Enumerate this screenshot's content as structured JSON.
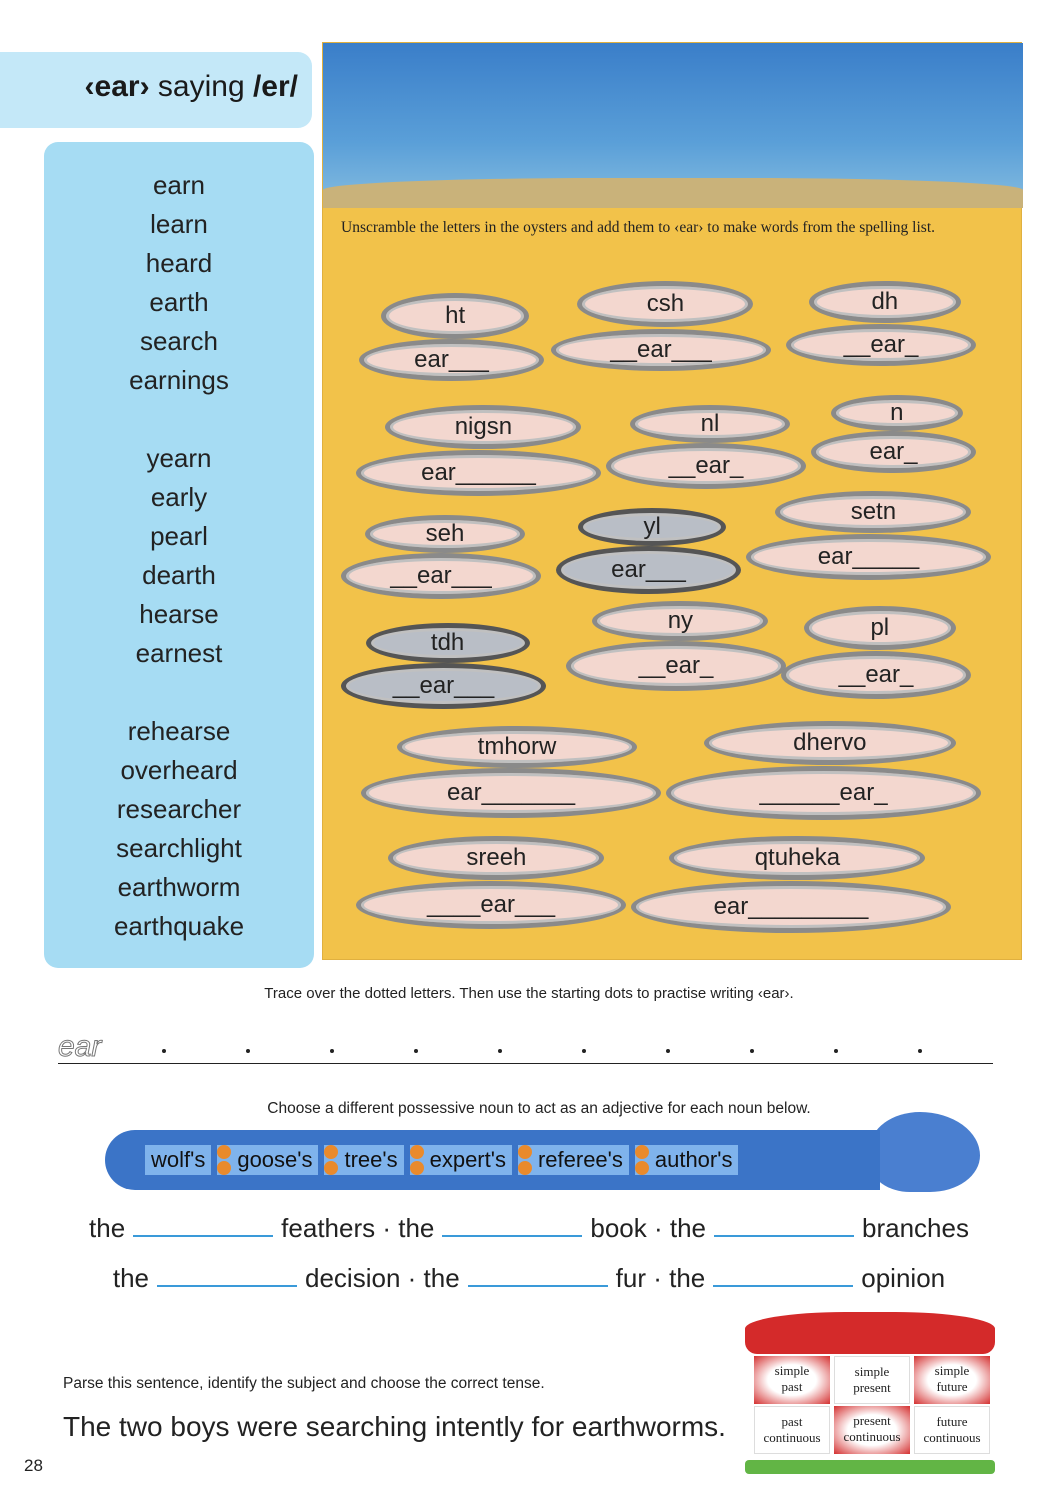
{
  "title": {
    "part1": "‹ear›",
    "part2": " saying ",
    "part3": "/er/"
  },
  "word_list": [
    [
      "earn",
      "learn",
      "heard",
      "earth",
      "search",
      "earnings"
    ],
    [
      "yearn",
      "early",
      "pearl",
      "dearth",
      "hearse",
      "earnest"
    ],
    [
      "rehearse",
      "overheard",
      "researcher",
      "searchlight",
      "earthworm",
      "earthquake"
    ]
  ],
  "activity": {
    "instruction": "Unscramble the letters in the oysters and add them to ‹ear› to make words from the spelling list.",
    "oysters": [
      {
        "letters": "ht",
        "pattern": "ear___"
      },
      {
        "letters": "csh",
        "pattern": "__ear___"
      },
      {
        "letters": "dh",
        "pattern": "__ear_"
      },
      {
        "letters": "nigsn",
        "pattern": "ear______"
      },
      {
        "letters": "nl",
        "pattern": "__ear_"
      },
      {
        "letters": "n",
        "pattern": "ear_"
      },
      {
        "letters": "seh",
        "pattern": "__ear___"
      },
      {
        "letters": "yl",
        "pattern": "ear___"
      },
      {
        "letters": "setn",
        "pattern": "ear_____"
      },
      {
        "letters": "tdh",
        "pattern": "__ear___"
      },
      {
        "letters": "ny",
        "pattern": "__ear_"
      },
      {
        "letters": "pl",
        "pattern": "__ear_"
      },
      {
        "letters": "tmhorw",
        "pattern": "ear_______"
      },
      {
        "letters": "dhervo",
        "pattern": "______ear_"
      },
      {
        "letters": "sreeh",
        "pattern": "____ear___"
      },
      {
        "letters": "qtuheka",
        "pattern": "ear_________"
      }
    ]
  },
  "trace": {
    "instruction": "Trace over the dotted letters. Then use the starting dots to practise writing ‹ear›.",
    "dotted_word": "ear"
  },
  "possessive": {
    "instruction": "Choose a different possessive noun to act as an adjective for each noun below.",
    "options": [
      "wolf's",
      "goose's",
      "tree's",
      "expert's",
      "referee's",
      "author's"
    ],
    "line1": [
      "the",
      "feathers · the",
      "book · the",
      "branches"
    ],
    "line2": [
      "the",
      "decision · the",
      "fur · the",
      "opinion"
    ]
  },
  "parse": {
    "instruction": "Parse this sentence, identify the subject and choose the correct tense.",
    "sentence": "The two boys were searching intently for earthworms.",
    "tenses": [
      [
        "simple",
        "past"
      ],
      [
        "simple",
        "present"
      ],
      [
        "simple",
        "future"
      ],
      [
        "past",
        "continuous"
      ],
      [
        "present",
        "continuous"
      ],
      [
        "future",
        "continuous"
      ]
    ]
  },
  "page_number": "28"
}
